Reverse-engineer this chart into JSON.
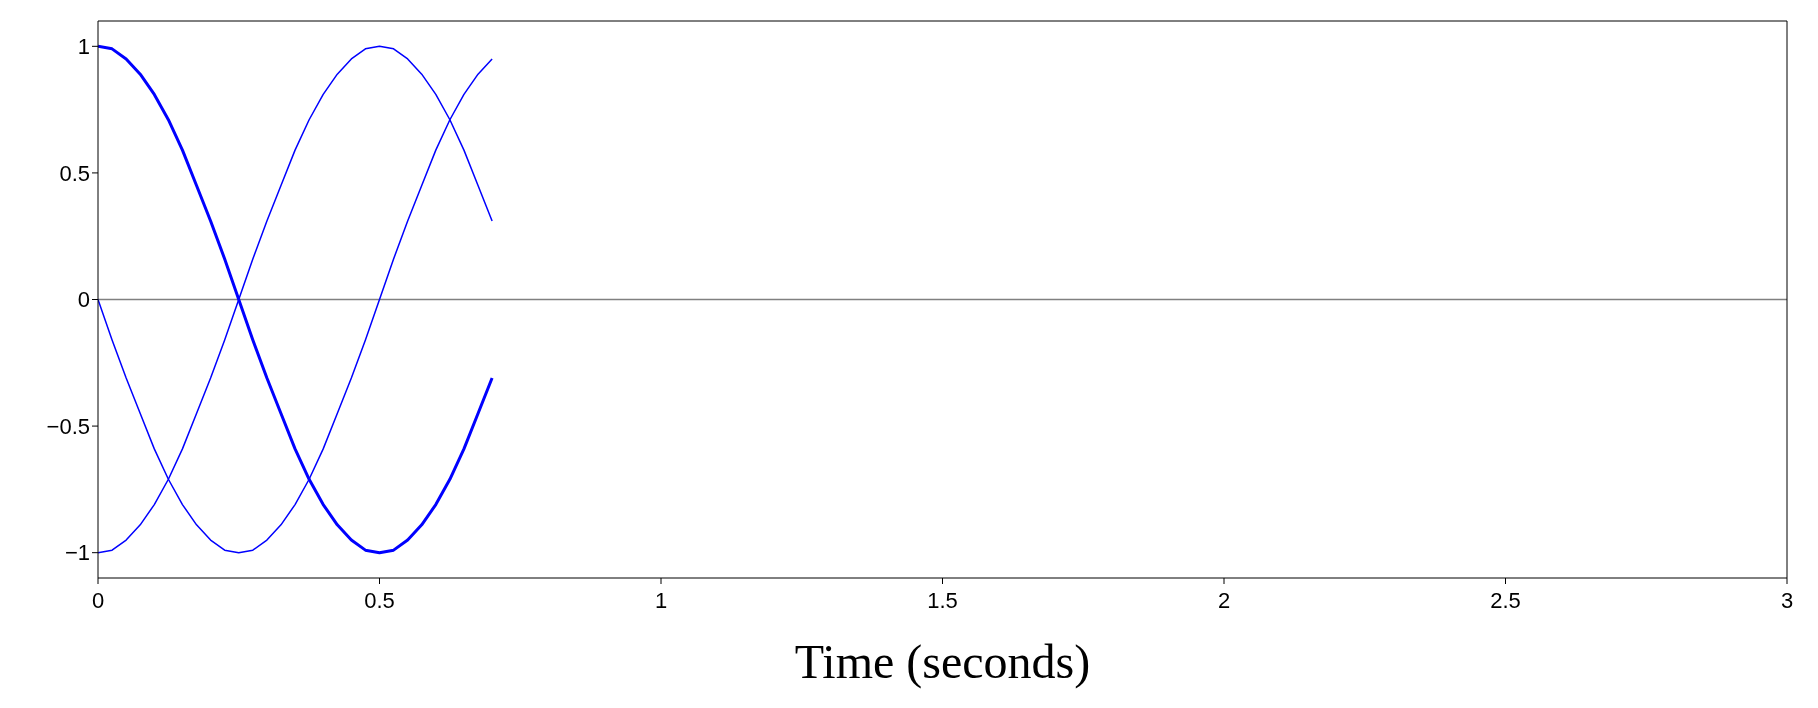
{
  "chart_data": {
    "type": "line",
    "xlabel": "Time (seconds)",
    "x": [
      0,
      0.025,
      0.05,
      0.075,
      0.1,
      0.125,
      0.15,
      0.175,
      0.2,
      0.225,
      0.25,
      0.275,
      0.3,
      0.325,
      0.35,
      0.375,
      0.4,
      0.425,
      0.45,
      0.475,
      0.5,
      0.525,
      0.55,
      0.575,
      0.6,
      0.625,
      0.65,
      0.675,
      0.7
    ],
    "series": [
      {
        "color": "#0000ff",
        "values": [
          1,
          0.99,
          0.95,
          0.89,
          0.81,
          0.71,
          0.59,
          0.45,
          0.31,
          0.16,
          0,
          -0.16,
          -0.31,
          -0.45,
          -0.59,
          -0.71,
          -0.81,
          -0.89,
          -0.95,
          -0.99,
          -1,
          -0.99,
          -0.95,
          -0.89,
          -0.81,
          -0.71,
          -0.59,
          -0.45,
          -0.31
        ]
      },
      {
        "color": "#0000ff",
        "values": [
          0,
          -0.16,
          -0.31,
          -0.45,
          -0.59,
          -0.71,
          -0.81,
          -0.89,
          -0.95,
          -0.99,
          -1,
          -0.99,
          -0.95,
          -0.89,
          -0.81,
          -0.71,
          -0.59,
          -0.45,
          -0.31,
          -0.16,
          0,
          0.16,
          0.31,
          0.45,
          0.59,
          0.71,
          0.81,
          0.89,
          0.95
        ]
      },
      {
        "color": "#0000ff",
        "values": [
          -1,
          -0.99,
          -0.95,
          -0.89,
          -0.81,
          -0.71,
          -0.59,
          -0.45,
          -0.31,
          -0.16,
          0,
          0.16,
          0.31,
          0.45,
          0.59,
          0.71,
          0.81,
          0.89,
          0.95,
          0.99,
          1,
          0.99,
          0.95,
          0.89,
          0.81,
          0.71,
          0.59,
          0.45,
          0.31
        ]
      }
    ],
    "xlim": [
      0,
      3
    ],
    "xticks": [
      0,
      0.5,
      1,
      1.5,
      2,
      2.5,
      3
    ],
    "ylim": [
      -1.1,
      1.1
    ],
    "yticks": [
      {
        "value": -1,
        "label": "−1"
      },
      {
        "value": -0.5,
        "label": "−0.5"
      },
      0,
      0.5,
      1
    ],
    "ref_lines": [
      {
        "axis": "y",
        "value": 0,
        "color": "#808080"
      }
    ],
    "grid": false,
    "marker": "none",
    "line_style": "solid"
  }
}
